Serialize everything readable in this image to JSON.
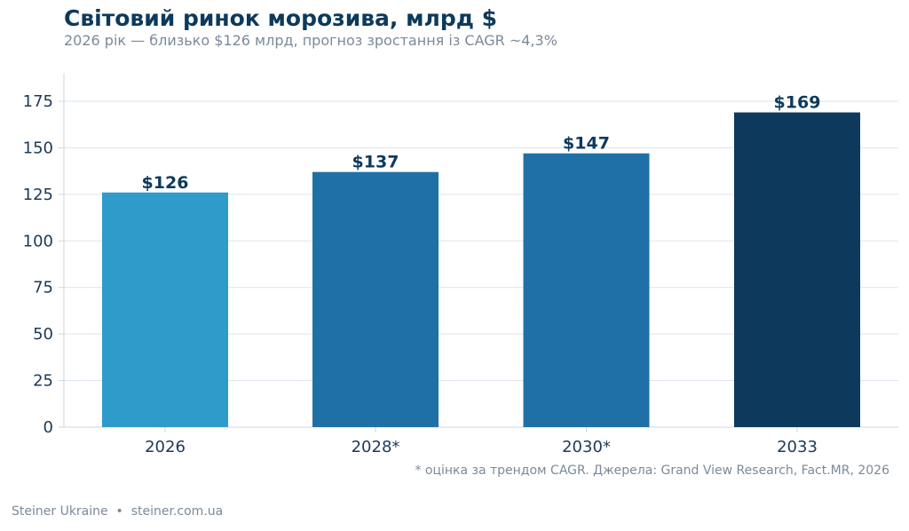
{
  "title": "Світовий ринок морозива, млрд $",
  "subtitle": "2026 рік — близько $126 млрд, прогноз зростання із CAGR ~4,3%",
  "footnote": "* оцінка за трендом CAGR. Джерела: Grand View Research, Fact.MR, 2026",
  "credit": {
    "brand": "Steiner Ukraine",
    "separator": "•",
    "site": "steiner.com.ua"
  },
  "colors": {
    "title": "#0d3a5c",
    "muted": "#7b8a99",
    "grid": "#dde4ee",
    "axis": "#ccd5e0"
  },
  "chart_data": {
    "type": "bar",
    "categories": [
      "2026",
      "2028*",
      "2030*",
      "2033"
    ],
    "values": [
      126,
      137,
      147,
      169
    ],
    "data_labels": [
      "$126",
      "$137",
      "$147",
      "$169"
    ],
    "bar_colors": [
      "#2f9bcb",
      "#1f70a7",
      "#1f70a7",
      "#0d3a5c"
    ],
    "yticks": [
      0,
      25,
      50,
      75,
      100,
      125,
      150,
      175
    ],
    "ylim": [
      0,
      190
    ],
    "grid": true,
    "legend": "none",
    "title": "Світовий ринок морозива, млрд $",
    "xlabel": "",
    "ylabel": ""
  }
}
